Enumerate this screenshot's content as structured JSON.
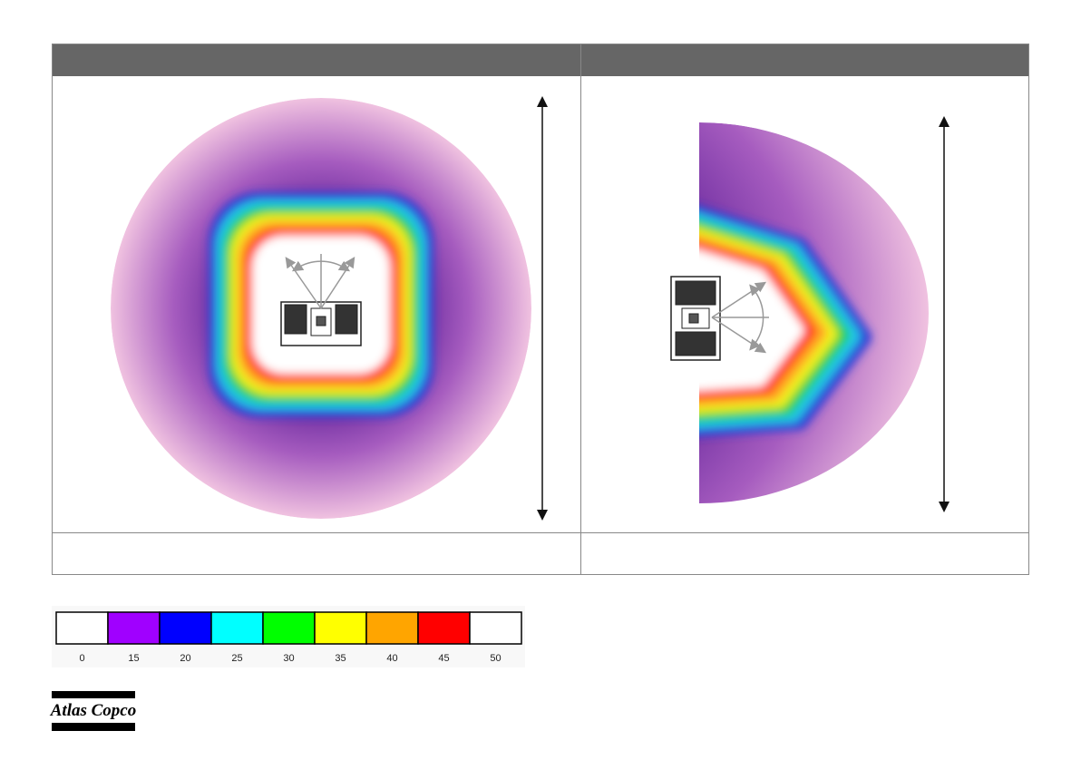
{
  "legend": {
    "colors": [
      "#ffffff",
      "#a000ff",
      "#0000ff",
      "#00ffff",
      "#00ff00",
      "#ffff00",
      "#ffa500",
      "#ff0000",
      "#ffffff"
    ],
    "labels": [
      "0",
      "15",
      "20",
      "25",
      "30",
      "35",
      "40",
      "45",
      "50"
    ]
  },
  "logo": {
    "text": "Atlas Copco"
  }
}
